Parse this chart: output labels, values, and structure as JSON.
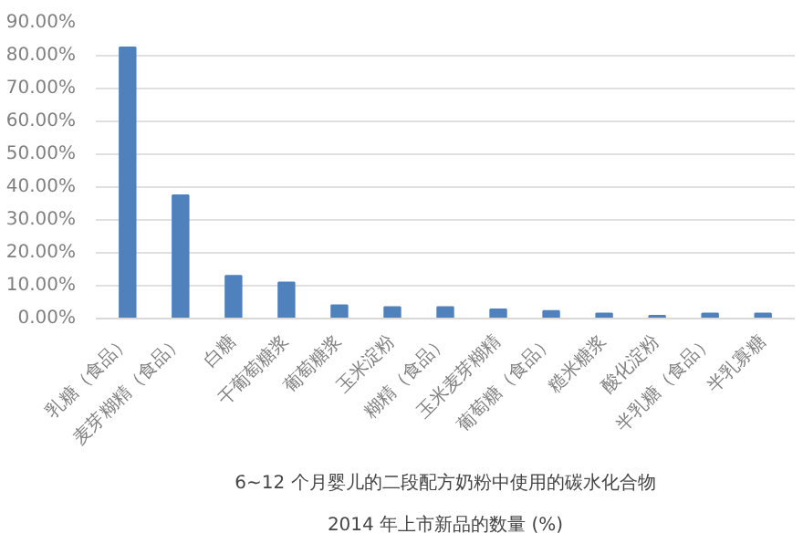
{
  "chart_data": {
    "type": "bar",
    "title": "6~12 个月婴儿的二段配方奶粉中使用的碳水化合物",
    "subtitle": "2014 年上市新品的数量 (%)",
    "categories": [
      "乳糖（食品）",
      "麦芽糊精（食品）",
      "白糖",
      "干葡萄糖浆",
      "葡萄糖浆",
      "玉米淀粉",
      "糊精（食品）",
      "玉米麦芽糊精",
      "葡萄糖（食品）",
      "糙米糖浆",
      "酸化淀粉",
      "半乳糖（食品）",
      "半乳寡糖"
    ],
    "values": [
      82.5,
      37.5,
      13,
      11,
      4,
      3.5,
      3.5,
      2.8,
      2.3,
      1.5,
      0.8,
      1.5,
      1.5
    ],
    "color": "#4f81bd",
    "ylim": [
      0,
      90
    ],
    "yticks": [
      {
        "value": 0,
        "label": "0.00%"
      },
      {
        "value": 10,
        "label": "10.00%"
      },
      {
        "value": 20,
        "label": "20.00%"
      },
      {
        "value": 30,
        "label": "30.00%"
      },
      {
        "value": 40,
        "label": "40.00%"
      },
      {
        "value": 50,
        "label": "50.00%"
      },
      {
        "value": 60,
        "label": "60.00%"
      },
      {
        "value": 70,
        "label": "70.00%"
      },
      {
        "value": 80,
        "label": "80.00%"
      },
      {
        "value": 90,
        "label": "90.00%"
      }
    ],
    "grid": "y"
  }
}
